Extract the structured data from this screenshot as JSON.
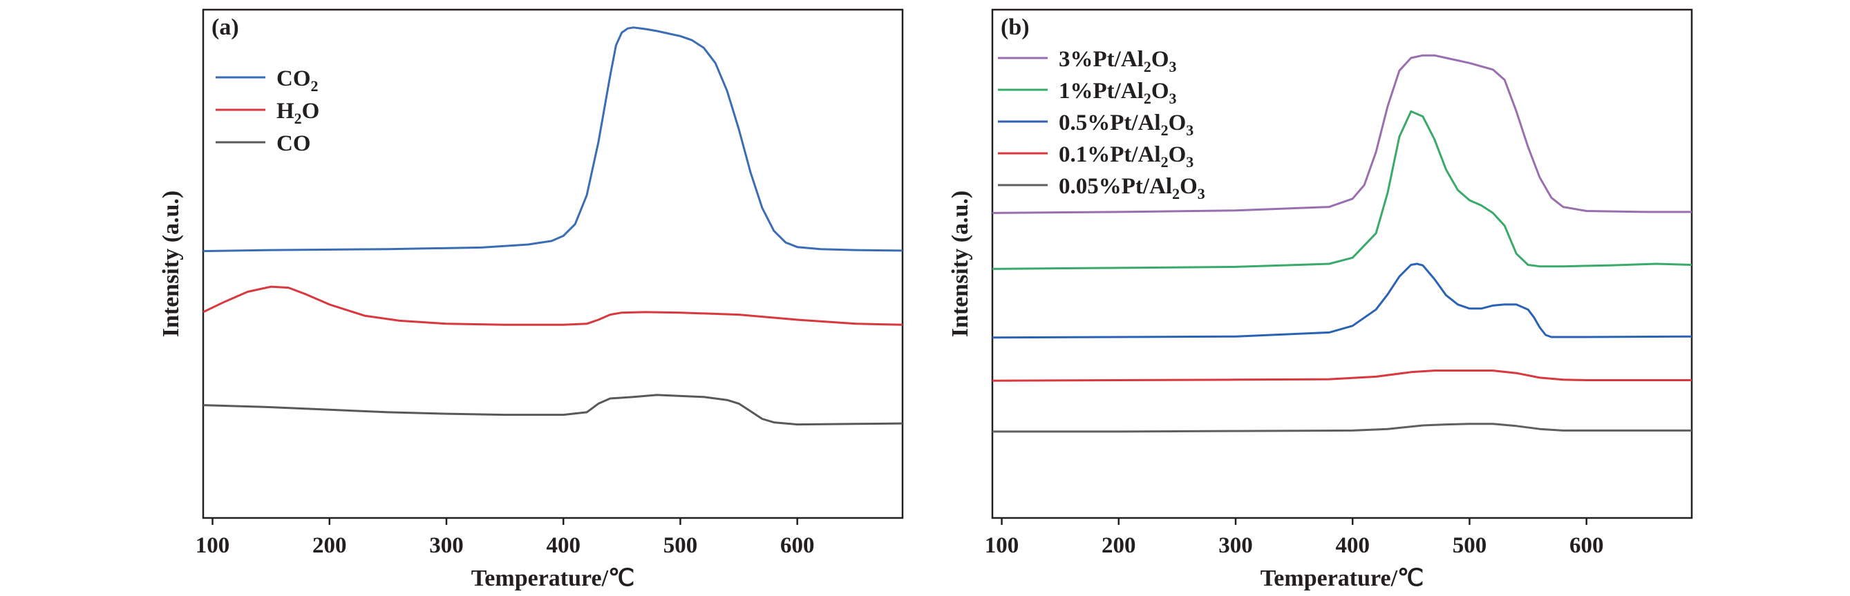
{
  "chart_data": [
    {
      "panel": "(a)",
      "type": "line",
      "xlabel": "Temperature/℃",
      "ylabel": "Intensity (a.u.)",
      "xlim": [
        92,
        690
      ],
      "ylim": [
        0,
        1
      ],
      "xticks": [
        100,
        200,
        300,
        400,
        500,
        600
      ],
      "yticks_shown": false,
      "grid": false,
      "legend_position": "top-left",
      "series": [
        {
          "name": "CO2",
          "label_main": "CO",
          "label_sub": "2",
          "label_tail": "",
          "color": "#3a6db5",
          "x": [
            92,
            150,
            250,
            330,
            370,
            390,
            400,
            410,
            420,
            430,
            440,
            445,
            450,
            455,
            460,
            470,
            480,
            490,
            500,
            510,
            520,
            530,
            540,
            550,
            560,
            570,
            580,
            590,
            600,
            620,
            650,
            690
          ],
          "y": [
            0.525,
            0.527,
            0.529,
            0.532,
            0.538,
            0.545,
            0.555,
            0.578,
            0.635,
            0.74,
            0.87,
            0.93,
            0.955,
            0.963,
            0.965,
            0.962,
            0.958,
            0.953,
            0.948,
            0.94,
            0.925,
            0.895,
            0.84,
            0.765,
            0.68,
            0.61,
            0.565,
            0.542,
            0.533,
            0.529,
            0.527,
            0.526
          ]
        },
        {
          "name": "H2O",
          "label_main": "H",
          "label_sub": "2",
          "label_tail": "O",
          "color": "#d8383e",
          "x": [
            92,
            110,
            130,
            150,
            165,
            180,
            200,
            230,
            260,
            300,
            350,
            400,
            420,
            430,
            440,
            450,
            470,
            500,
            550,
            600,
            650,
            690
          ],
          "y": [
            0.405,
            0.425,
            0.445,
            0.455,
            0.453,
            0.44,
            0.42,
            0.398,
            0.388,
            0.382,
            0.38,
            0.38,
            0.382,
            0.39,
            0.4,
            0.404,
            0.405,
            0.404,
            0.4,
            0.39,
            0.382,
            0.38
          ]
        },
        {
          "name": "CO",
          "label_main": "CO",
          "label_sub": "",
          "label_tail": "",
          "color": "#595959",
          "x": [
            92,
            150,
            200,
            250,
            300,
            350,
            400,
            420,
            430,
            440,
            460,
            480,
            500,
            520,
            540,
            550,
            560,
            570,
            580,
            600,
            650,
            690
          ],
          "y": [
            0.222,
            0.218,
            0.213,
            0.208,
            0.205,
            0.203,
            0.203,
            0.208,
            0.225,
            0.235,
            0.238,
            0.242,
            0.24,
            0.238,
            0.232,
            0.225,
            0.21,
            0.195,
            0.188,
            0.184,
            0.185,
            0.186
          ]
        }
      ]
    },
    {
      "panel": "(b)",
      "type": "line",
      "xlabel": "Temperature/℃",
      "ylabel": "Intensity (a.u.)",
      "xlim": [
        92,
        690
      ],
      "ylim": [
        0,
        1
      ],
      "xticks": [
        100,
        200,
        300,
        400,
        500,
        600
      ],
      "yticks_shown": false,
      "grid": false,
      "legend_position": "top-left",
      "series": [
        {
          "name": "3%Pt/Al2O3",
          "label_main": "3%Pt/Al",
          "label_sub": "2",
          "label_tail": "O",
          "label_sub2": "3",
          "color": "#9a6fb0",
          "x": [
            92,
            200,
            300,
            380,
            400,
            410,
            420,
            430,
            440,
            450,
            460,
            470,
            480,
            500,
            520,
            530,
            540,
            550,
            560,
            570,
            580,
            600,
            650,
            690
          ],
          "y": [
            0.6,
            0.602,
            0.605,
            0.612,
            0.628,
            0.655,
            0.72,
            0.81,
            0.88,
            0.905,
            0.91,
            0.91,
            0.905,
            0.895,
            0.882,
            0.862,
            0.8,
            0.73,
            0.67,
            0.63,
            0.612,
            0.604,
            0.602,
            0.602
          ]
        },
        {
          "name": "1%Pt/Al2O3",
          "label_main": "1%Pt/Al",
          "label_sub": "2",
          "label_tail": "O",
          "label_sub2": "3",
          "color": "#3aaa6a",
          "x": [
            92,
            200,
            300,
            380,
            400,
            420,
            430,
            440,
            450,
            460,
            470,
            480,
            490,
            500,
            510,
            520,
            530,
            540,
            550,
            560,
            580,
            620,
            660,
            690
          ],
          "y": [
            0.49,
            0.492,
            0.494,
            0.5,
            0.512,
            0.56,
            0.64,
            0.75,
            0.8,
            0.79,
            0.745,
            0.685,
            0.645,
            0.625,
            0.615,
            0.6,
            0.575,
            0.52,
            0.498,
            0.495,
            0.495,
            0.497,
            0.5,
            0.498
          ]
        },
        {
          "name": "0.5%Pt/Al2O3",
          "label_main": "0.5%Pt/Al",
          "label_sub": "2",
          "label_tail": "O",
          "label_sub2": "3",
          "color": "#2a62b5",
          "x": [
            92,
            200,
            300,
            380,
            400,
            420,
            430,
            440,
            450,
            455,
            460,
            470,
            480,
            490,
            500,
            510,
            520,
            530,
            540,
            550,
            555,
            560,
            565,
            570,
            600,
            690
          ],
          "y": [
            0.355,
            0.356,
            0.357,
            0.365,
            0.378,
            0.41,
            0.44,
            0.475,
            0.498,
            0.5,
            0.497,
            0.47,
            0.438,
            0.42,
            0.412,
            0.412,
            0.418,
            0.42,
            0.42,
            0.41,
            0.395,
            0.375,
            0.36,
            0.356,
            0.356,
            0.357
          ]
        },
        {
          "name": "0.1%Pt/Al2O3",
          "label_main": "0.1%Pt/Al",
          "label_sub": "2",
          "label_tail": "O",
          "label_sub2": "3",
          "color": "#d8383e",
          "x": [
            92,
            200,
            300,
            380,
            420,
            450,
            470,
            500,
            520,
            540,
            560,
            580,
            600,
            690
          ],
          "y": [
            0.27,
            0.271,
            0.272,
            0.273,
            0.278,
            0.287,
            0.29,
            0.29,
            0.29,
            0.285,
            0.276,
            0.272,
            0.271,
            0.271
          ]
        },
        {
          "name": "0.05%Pt/Al2O3",
          "label_main": "0.05%Pt/Al",
          "label_sub": "2",
          "label_tail": "O",
          "label_sub2": "3",
          "color": "#5f5f5f",
          "x": [
            92,
            200,
            300,
            400,
            430,
            460,
            480,
            500,
            520,
            540,
            560,
            580,
            690
          ],
          "y": [
            0.17,
            0.17,
            0.171,
            0.172,
            0.175,
            0.182,
            0.184,
            0.185,
            0.185,
            0.181,
            0.175,
            0.172,
            0.172
          ]
        }
      ]
    }
  ]
}
